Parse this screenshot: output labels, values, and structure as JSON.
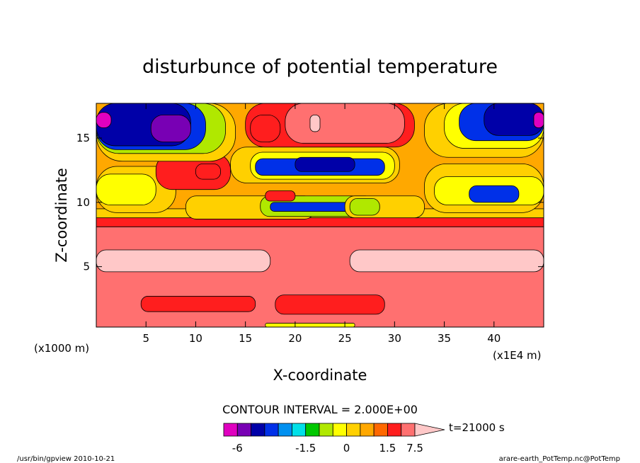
{
  "chart_data": {
    "type": "heatmap",
    "title": "disturbunce of potential temperature",
    "xlabel": "X-coordinate",
    "ylabel": "Z-coordinate",
    "x_unit_left": "(x1000 m)",
    "x_unit_right": "(x1E4 m)",
    "xlim": [
      0,
      45
    ],
    "ylim": [
      0.3,
      17.7
    ],
    "x_ticks": [
      {
        "value": 5,
        "label": "5"
      },
      {
        "value": 10,
        "label": "10"
      },
      {
        "value": 15,
        "label": "15"
      },
      {
        "value": 20,
        "label": "20"
      },
      {
        "value": 25,
        "label": "25"
      },
      {
        "value": 30,
        "label": "30"
      },
      {
        "value": 35,
        "label": "35"
      },
      {
        "value": 40,
        "label": "40"
      }
    ],
    "y_ticks": [
      {
        "value": 5,
        "label": "5"
      },
      {
        "value": 10,
        "label": "10"
      },
      {
        "value": 15,
        "label": "15"
      }
    ],
    "contour_interval": "CONTOUR INTERVAL = 2.000E+00",
    "time_label": "t=21000 s",
    "colorbar": {
      "labels": [
        {
          "value": -6,
          "label": "-6"
        },
        {
          "value": -1.5,
          "label": "-1.5"
        },
        {
          "value": 0,
          "label": "0"
        },
        {
          "value": 1.5,
          "label": "1.5"
        },
        {
          "value": 7.5,
          "label": "7.5"
        }
      ],
      "colors": [
        "#e000c0",
        "#7800b4",
        "#0000a8",
        "#0030e8",
        "#0090f0",
        "#00e0e8",
        "#00c800",
        "#b0e800",
        "#ffff00",
        "#ffd000",
        "#ffa800",
        "#ff6800",
        "#ff1e1e",
        "#ff7070",
        "#ffc8c8"
      ]
    },
    "regions": [
      {
        "level": 0.8,
        "x0": 0,
        "x1": 45,
        "y0": 0.3,
        "y1": 17.7
      },
      {
        "level": 3.5,
        "x0": 0,
        "x1": 45,
        "y0": 0.3,
        "y1": 8.1
      },
      {
        "level": 1.5,
        "x0": 0,
        "x1": 45,
        "y0": 8.1,
        "y1": 8.8
      },
      {
        "level": 0.3,
        "x0": 0,
        "x1": 45,
        "y0": 8.8,
        "y1": 9.5
      },
      {
        "level": 5.5,
        "x0": 0,
        "x1": 17.5,
        "y0": 4.6,
        "y1": 6.3
      },
      {
        "level": 5.5,
        "x0": 25.5,
        "x1": 45,
        "y0": 4.6,
        "y1": 6.3
      },
      {
        "level": 1.5,
        "x0": 4.5,
        "x1": 16,
        "y0": 1.5,
        "y1": 2.7
      },
      {
        "level": 1.5,
        "x0": 18,
        "x1": 29,
        "y0": 1.3,
        "y1": 2.8
      },
      {
        "level": -0.3,
        "x0": 17,
        "x1": 26,
        "y0": 0.3,
        "y1": 0.6
      },
      {
        "level": 0.3,
        "x0": 9,
        "x1": 22,
        "y0": 8.7,
        "y1": 10.5
      },
      {
        "level": -0.7,
        "x0": 16.5,
        "x1": 28,
        "y0": 8.9,
        "y1": 10.5
      },
      {
        "level": -3.5,
        "x0": 17.5,
        "x1": 26,
        "y0": 9.3,
        "y1": 10.0
      },
      {
        "level": 2.5,
        "x0": 17,
        "x1": 20,
        "y0": 10.1,
        "y1": 10.9
      },
      {
        "level": 0.3,
        "x0": 25,
        "x1": 33,
        "y0": 8.8,
        "y1": 10.5
      },
      {
        "level": -0.7,
        "x0": 25.5,
        "x1": 28.5,
        "y0": 9.0,
        "y1": 10.3
      },
      {
        "level": 0.3,
        "x0": 0,
        "x1": 8,
        "y0": 9.2,
        "y1": 12.8
      },
      {
        "level": -0.3,
        "x0": 0,
        "x1": 6,
        "y0": 9.8,
        "y1": 12.2
      },
      {
        "level": 0.3,
        "x0": 33,
        "x1": 45,
        "y0": 9.2,
        "y1": 13.0
      },
      {
        "level": -0.3,
        "x0": 34,
        "x1": 45,
        "y0": 9.8,
        "y1": 12.0
      },
      {
        "level": -3.5,
        "x0": 37.5,
        "x1": 42.5,
        "y0": 10.0,
        "y1": 11.3
      },
      {
        "level": 1.5,
        "x0": 6,
        "x1": 13.5,
        "y0": 11.0,
        "y1": 13.8
      },
      {
        "level": 2.5,
        "x0": 10,
        "x1": 12.5,
        "y0": 11.8,
        "y1": 13.0
      },
      {
        "level": 0.3,
        "x0": 13.5,
        "x1": 30.5,
        "y0": 11.5,
        "y1": 14.3
      },
      {
        "level": -0.3,
        "x0": 15.5,
        "x1": 30,
        "y0": 11.8,
        "y1": 13.9
      },
      {
        "level": -3.5,
        "x0": 16,
        "x1": 29,
        "y0": 12.1,
        "y1": 13.4
      },
      {
        "level": -4.5,
        "x0": 20,
        "x1": 26,
        "y0": 12.4,
        "y1": 13.5
      },
      {
        "level": 0.3,
        "x0": 0,
        "x1": 14,
        "y0": 13.2,
        "y1": 17.7
      },
      {
        "level": -0.7,
        "x0": 0,
        "x1": 13,
        "y0": 13.8,
        "y1": 17.7
      },
      {
        "level": -3.5,
        "x0": 0,
        "x1": 11,
        "y0": 14.1,
        "y1": 17.7
      },
      {
        "level": -4.5,
        "x0": 0,
        "x1": 9.5,
        "y0": 14.4,
        "y1": 17.7
      },
      {
        "level": -6.5,
        "x0": 0,
        "x1": 1.5,
        "y0": 15.8,
        "y1": 17.0
      },
      {
        "level": -5.5,
        "x0": 5.5,
        "x1": 9.5,
        "y0": 14.7,
        "y1": 16.8
      },
      {
        "level": 1.5,
        "x0": 15,
        "x1": 32,
        "y0": 14.3,
        "y1": 17.7
      },
      {
        "level": 3.5,
        "x0": 19,
        "x1": 31,
        "y0": 14.6,
        "y1": 17.7
      },
      {
        "level": 5.5,
        "x0": 21.5,
        "x1": 22.5,
        "y0": 15.5,
        "y1": 16.8
      },
      {
        "level": 2.5,
        "x0": 15.5,
        "x1": 18.5,
        "y0": 14.7,
        "y1": 16.8
      },
      {
        "level": 0.3,
        "x0": 33,
        "x1": 45,
        "y0": 13.5,
        "y1": 17.7
      },
      {
        "level": -0.3,
        "x0": 35,
        "x1": 45,
        "y0": 14.2,
        "y1": 17.7
      },
      {
        "level": -3.5,
        "x0": 36.5,
        "x1": 45,
        "y0": 14.8,
        "y1": 17.7
      },
      {
        "level": -4.5,
        "x0": 39,
        "x1": 45,
        "y0": 15.2,
        "y1": 17.7
      },
      {
        "level": -6.5,
        "x0": 44,
        "x1": 45,
        "y0": 15.8,
        "y1": 17.0
      }
    ]
  },
  "footer": {
    "left": "/usr/bin/gpview   2010-10-21",
    "right": "arare-earth_PotTemp.nc@PotTemp"
  }
}
